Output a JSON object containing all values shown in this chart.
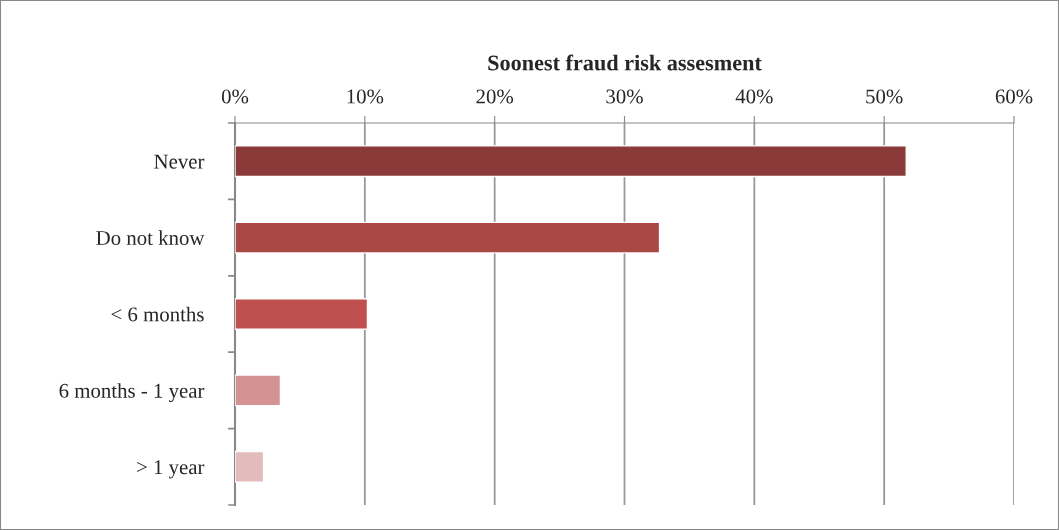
{
  "chart_data": {
    "type": "bar",
    "orientation": "horizontal",
    "title": "Soonest fraud risk assesment",
    "categories": [
      "Never",
      "Do not know",
      "< 6 months",
      "6 months - 1 year",
      "> 1 year"
    ],
    "values": [
      51.7,
      32.7,
      10.2,
      3.5,
      2.2
    ],
    "colors": [
      "#8b3a3a",
      "#aa4846",
      "#c0504d",
      "#d49392",
      "#e2bcbd"
    ],
    "xlim": [
      0,
      60
    ],
    "xticks": [
      {
        "value": 0,
        "label": "0%"
      },
      {
        "value": 10,
        "label": "10%"
      },
      {
        "value": 20,
        "label": "20%"
      },
      {
        "value": 30,
        "label": "30%"
      },
      {
        "value": 40,
        "label": "40%"
      },
      {
        "value": 50,
        "label": "50%"
      },
      {
        "value": 60,
        "label": "60%"
      }
    ],
    "grid": "x",
    "legend": false
  }
}
